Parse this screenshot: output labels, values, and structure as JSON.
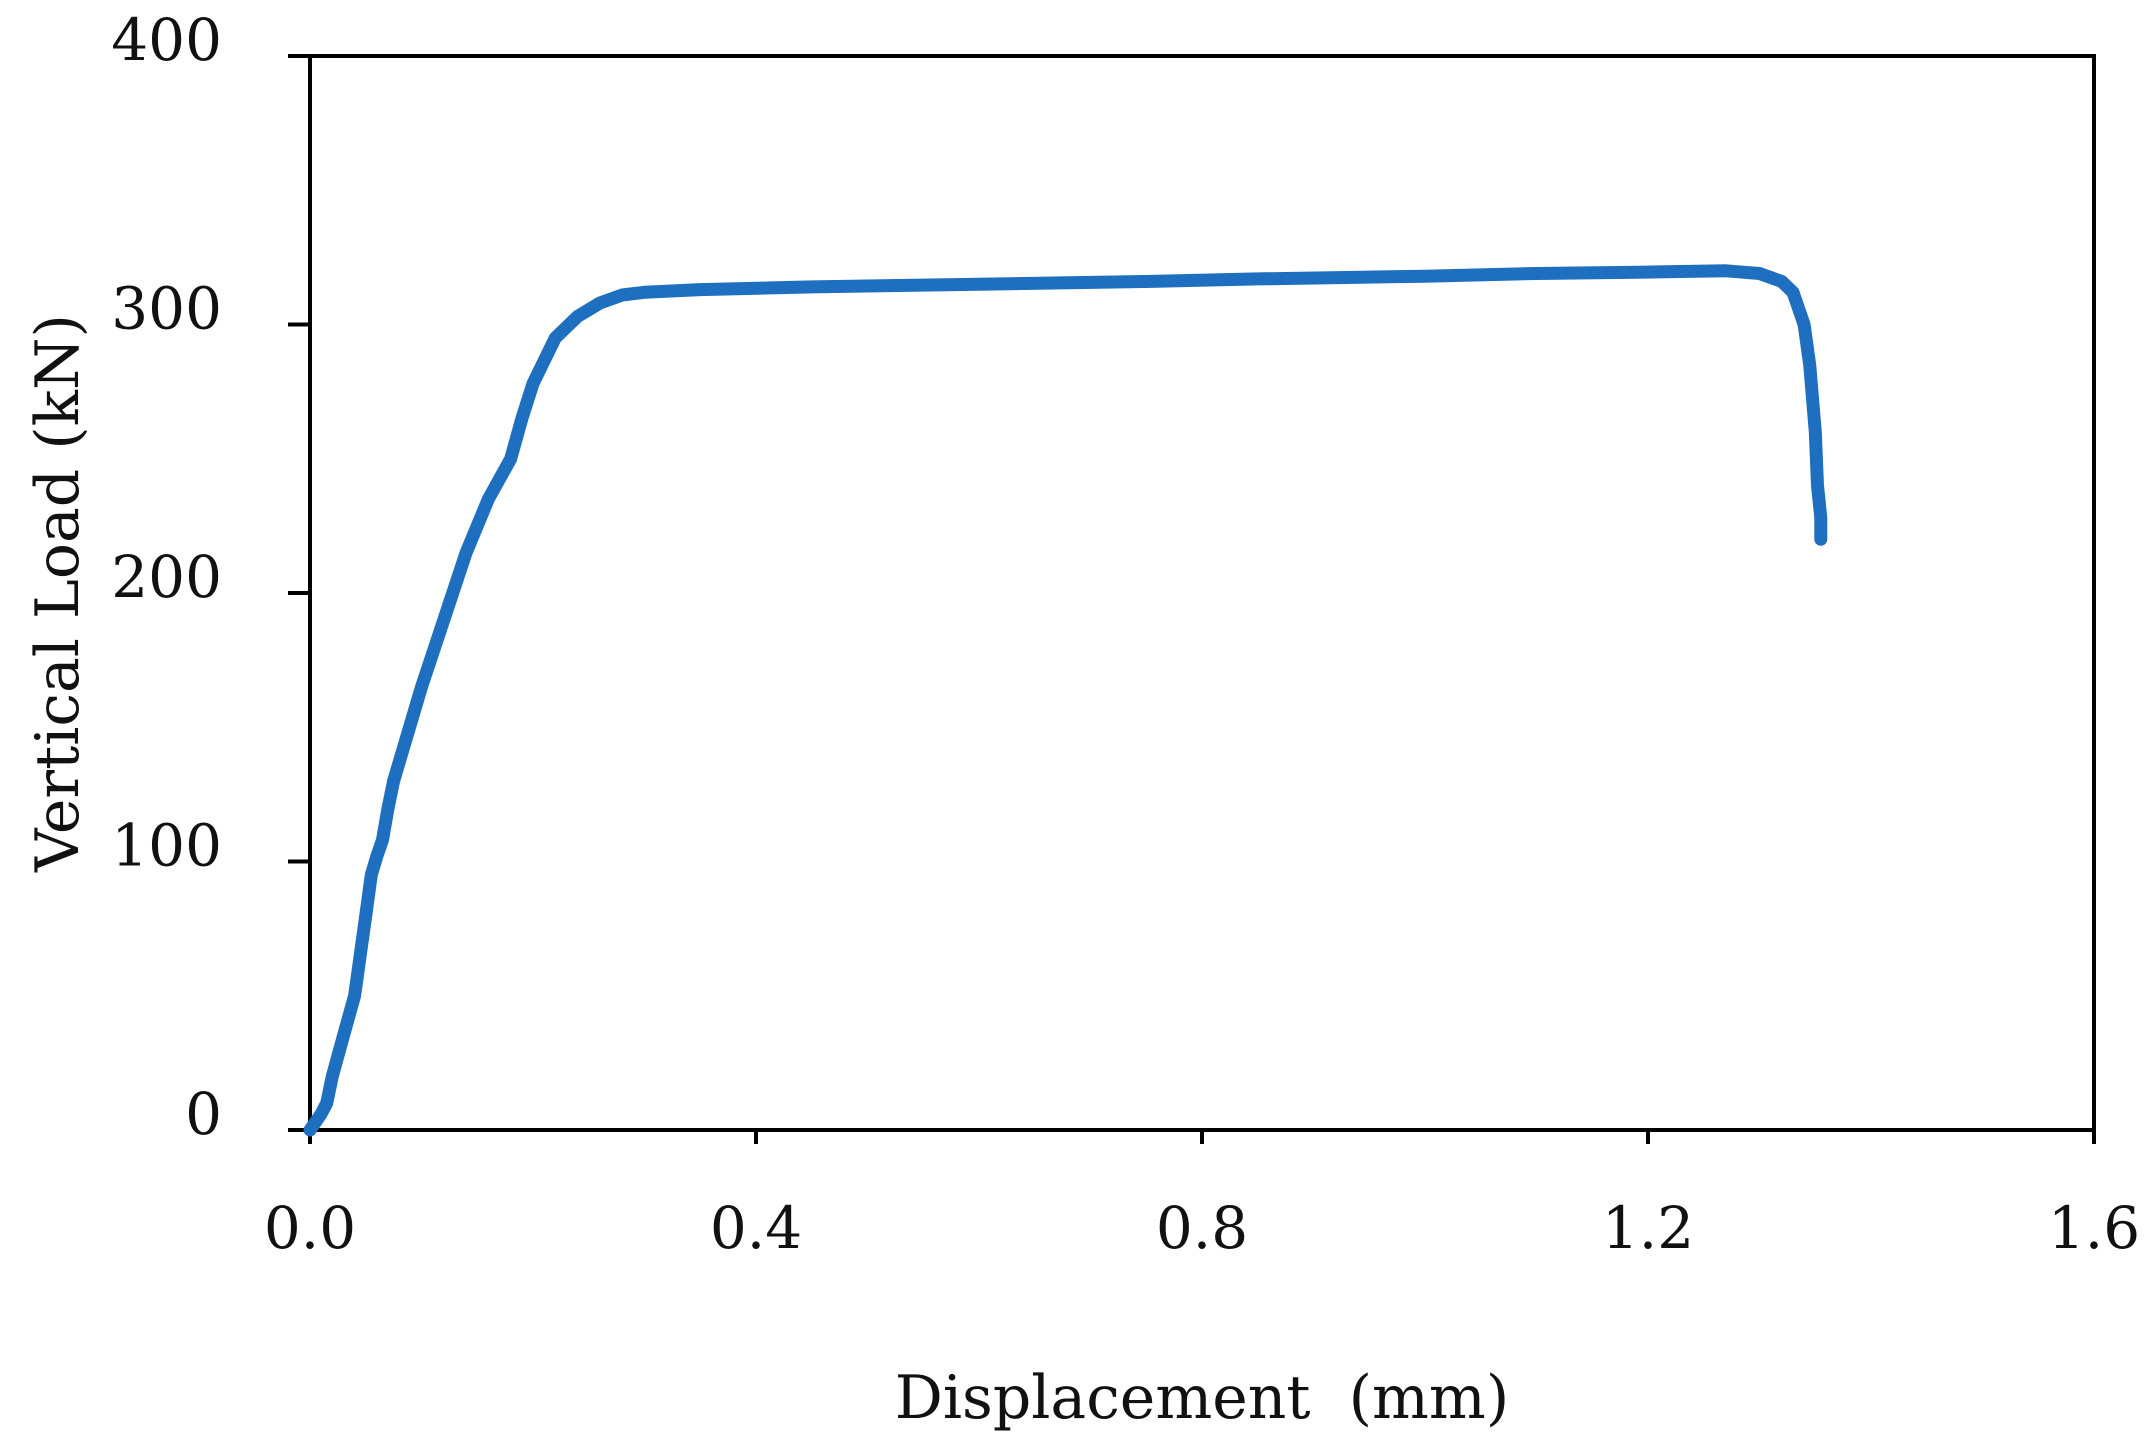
{
  "chart_data": {
    "type": "line",
    "title": "",
    "xlabel": "Displacement  (mm)",
    "ylabel": "Vertical Load (kN)",
    "xlim": [
      0.0,
      1.6
    ],
    "ylim": [
      0,
      400
    ],
    "xticks": [
      0.0,
      0.4,
      0.8,
      1.2,
      1.6
    ],
    "xtick_labels": [
      "0.0",
      "0.4",
      "0.8",
      "1.2",
      "1.6"
    ],
    "yticks": [
      0,
      100,
      200,
      300,
      400
    ],
    "ytick_labels": [
      "0",
      "100",
      "200",
      "300",
      "400"
    ],
    "grid": false,
    "legend": "none",
    "series": [
      {
        "color": "#1f6fc1",
        "x": [
          0.0,
          0.005,
          0.01,
          0.015,
          0.02,
          0.03,
          0.04,
          0.05,
          0.055,
          0.06,
          0.065,
          0.07,
          0.075,
          0.08,
          0.1,
          0.12,
          0.14,
          0.16,
          0.18,
          0.19,
          0.2,
          0.22,
          0.24,
          0.26,
          0.28,
          0.3,
          0.35,
          0.45,
          0.6,
          0.75,
          0.85,
          1.0,
          1.1,
          1.2,
          1.27,
          1.3,
          1.32,
          1.33,
          1.34,
          1.345,
          1.35,
          1.352,
          1.355,
          1.355
        ],
        "y": [
          0,
          3,
          6,
          10,
          20,
          35,
          50,
          80,
          95,
          102,
          108,
          120,
          130,
          137,
          165,
          190,
          215,
          235,
          250,
          265,
          278,
          295,
          303,
          308,
          311,
          312,
          313,
          314,
          315,
          316,
          317,
          318,
          319,
          319.5,
          320,
          319,
          316,
          312,
          300,
          285,
          260,
          240,
          228,
          220
        ]
      }
    ]
  }
}
